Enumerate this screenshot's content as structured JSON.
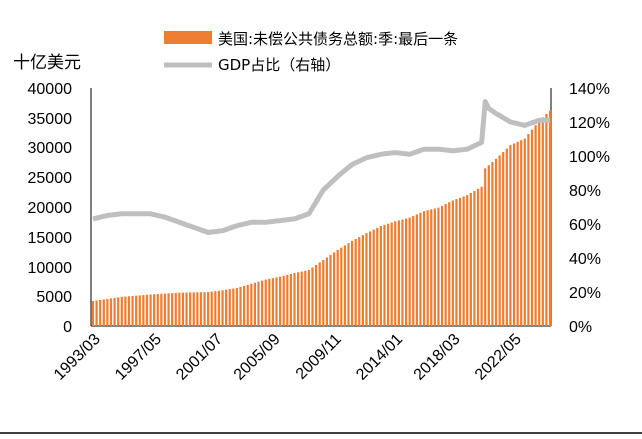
{
  "chart_data": {
    "type": "bar",
    "unit_left": "十亿美元",
    "legend": {
      "placement": "top",
      "items": []
    },
    "series": [
      {
        "name": "美国:未偿公共债务总额:季:最后一条",
        "type": "bar",
        "axis": "left",
        "color": "#ED7D31",
        "values": []
      },
      {
        "name": "GDP占比（右轴）",
        "type": "line",
        "axis": "right",
        "color": "#BFBFBF",
        "values": []
      }
    ],
    "x_tick_labels": [
      "1993/03",
      "1997/05",
      "2001/07",
      "2005/09",
      "2009/11",
      "2014/01",
      "2018/03",
      "2022/05"
    ],
    "left_axis": {
      "ylim": [
        0,
        40000
      ],
      "ticks": [
        "0",
        "5000",
        "10000",
        "15000",
        "20000",
        "25000",
        "30000",
        "35000",
        "40000"
      ]
    },
    "right_axis": {
      "ylim": [
        0,
        140
      ],
      "ticks": [
        "0%",
        "20%",
        "40%",
        "60%",
        "80%",
        "100%",
        "120%",
        "140%"
      ]
    },
    "debt_points": [
      [
        "1993/03",
        4200
      ],
      [
        "1995/03",
        4900
      ],
      [
        "1997/03",
        5300
      ],
      [
        "1999/03",
        5600
      ],
      [
        "2001/03",
        5700
      ],
      [
        "2002/03",
        6000
      ],
      [
        "2003/03",
        6400
      ],
      [
        "2004/03",
        7100
      ],
      [
        "2005/03",
        7800
      ],
      [
        "2006/03",
        8300
      ],
      [
        "2007/03",
        8900
      ],
      [
        "2008/03",
        9400
      ],
      [
        "2009/03",
        11100
      ],
      [
        "2010/03",
        12800
      ],
      [
        "2011/03",
        14300
      ],
      [
        "2012/03",
        15600
      ],
      [
        "2013/03",
        16800
      ],
      [
        "2014/03",
        17600
      ],
      [
        "2015/03",
        18200
      ],
      [
        "2016/03",
        19300
      ],
      [
        "2017/03",
        19900
      ],
      [
        "2018/03",
        21100
      ],
      [
        "2019/03",
        22000
      ],
      [
        "2020/03",
        23400
      ],
      [
        "2020/06",
        26500
      ],
      [
        "2021/03",
        28100
      ],
      [
        "2022/03",
        30400
      ],
      [
        "2023/03",
        31500
      ],
      [
        "2024/03",
        34500
      ],
      [
        "2024/12",
        36200
      ]
    ],
    "gdp_ratio_points": [
      [
        "1993/03",
        63
      ],
      [
        "1994/03",
        65
      ],
      [
        "1995/03",
        66
      ],
      [
        "1996/03",
        66
      ],
      [
        "1997/03",
        66
      ],
      [
        "1998/03",
        64
      ],
      [
        "1999/03",
        61
      ],
      [
        "2000/03",
        58
      ],
      [
        "2001/03",
        55
      ],
      [
        "2002/03",
        56
      ],
      [
        "2003/03",
        59
      ],
      [
        "2004/03",
        61
      ],
      [
        "2005/03",
        61
      ],
      [
        "2006/03",
        62
      ],
      [
        "2007/03",
        63
      ],
      [
        "2008/03",
        66
      ],
      [
        "2009/03",
        80
      ],
      [
        "2010/03",
        88
      ],
      [
        "2011/03",
        95
      ],
      [
        "2012/03",
        99
      ],
      [
        "2013/03",
        101
      ],
      [
        "2014/03",
        102
      ],
      [
        "2015/03",
        101
      ],
      [
        "2016/03",
        104
      ],
      [
        "2017/03",
        104
      ],
      [
        "2018/03",
        103
      ],
      [
        "2019/03",
        104
      ],
      [
        "2020/03",
        108
      ],
      [
        "2020/06",
        132
      ],
      [
        "2020/09",
        128
      ],
      [
        "2021/03",
        125
      ],
      [
        "2022/03",
        120
      ],
      [
        "2023/03",
        118
      ],
      [
        "2024/03",
        121
      ],
      [
        "2024/12",
        121
      ]
    ],
    "grid": false
  }
}
